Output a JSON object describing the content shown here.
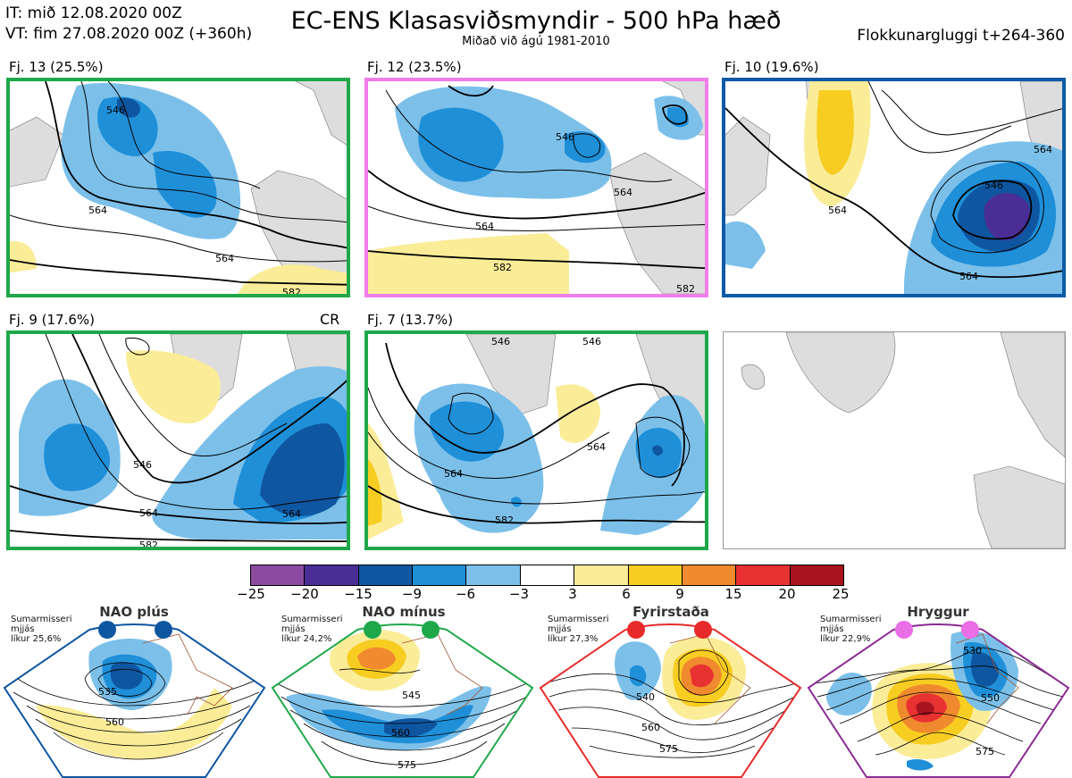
{
  "header": {
    "it_line": "IT: mið 12.08.2020 00Z",
    "vt_line": "VT: fim 27.08.2020 00Z  (+360h)",
    "title": "EC-ENS Klasasviðsmyndir - 500 hPa hæð",
    "subtitle": "Miðað við ágú 1981-2010",
    "window": "Flokkunargluggi t+264-360"
  },
  "panels": [
    {
      "label": "Fj. 13 (25.5%)",
      "border": "#1fa84a",
      "contours": [
        "546",
        "564",
        "564",
        "582"
      ]
    },
    {
      "label": "Fj. 12 (23.5%)",
      "border": "#f07de8",
      "contours": [
        "546",
        "564",
        "564",
        "582",
        "582"
      ]
    },
    {
      "label": "Fj. 10 (19.6%)",
      "border": "#0f5aa6",
      "contours": [
        "546",
        "564",
        "564",
        "564"
      ]
    },
    {
      "label": "Fj. 9 (17.6%)",
      "border": "#1fa84a",
      "contours": [
        "546",
        "564",
        "564",
        "582"
      ],
      "tag": "CR"
    },
    {
      "label": "Fj. 7 (13.7%)",
      "border": "#1fa84a",
      "contours": [
        "546",
        "546",
        "564",
        "564",
        "582"
      ]
    }
  ],
  "colorbar": {
    "ticks": [
      "−25",
      "−20",
      "−15",
      "−9",
      "−6",
      "−3",
      "3",
      "6",
      "9",
      "15",
      "20",
      "25"
    ],
    "colors": [
      "#8b4aa0",
      "#4a2e96",
      "#0f56a0",
      "#1f8fd8",
      "#7cc0ea",
      "#ffffff",
      "#fbec98",
      "#f7cd22",
      "#f08a2e",
      "#e83232",
      "#a8141e"
    ]
  },
  "regimes": [
    {
      "title": "NAO plús",
      "note1": "Sumarmisseri",
      "note2": "mjjás",
      "note3": "líkur 25,6%",
      "dot": "#0f56a0",
      "frame": "#0f56a0",
      "contours": [
        "535",
        "560"
      ]
    },
    {
      "title": "NAO mínus",
      "note1": "Sumarmisseri",
      "note2": "mjjás",
      "note3": "líkur 24,2%",
      "dot": "#1fa84a",
      "frame": "#1fa84a",
      "contours": [
        "545",
        "560",
        "575"
      ]
    },
    {
      "title": "Fyrirstaða",
      "note1": "Sumarmisseri",
      "note2": "mjjás",
      "note3": "líkur 27,3%",
      "dot": "#e82a2a",
      "frame": "#e82a2a",
      "contours": [
        "540",
        "560",
        "575"
      ]
    },
    {
      "title": "Hryggur",
      "note1": "Sumarmisseri",
      "note2": "mjjás",
      "note3": "líkur 22,9%",
      "dot": "#ea6ee6",
      "frame": "#8a2b92",
      "contours": [
        "530",
        "550",
        "575"
      ]
    }
  ]
}
